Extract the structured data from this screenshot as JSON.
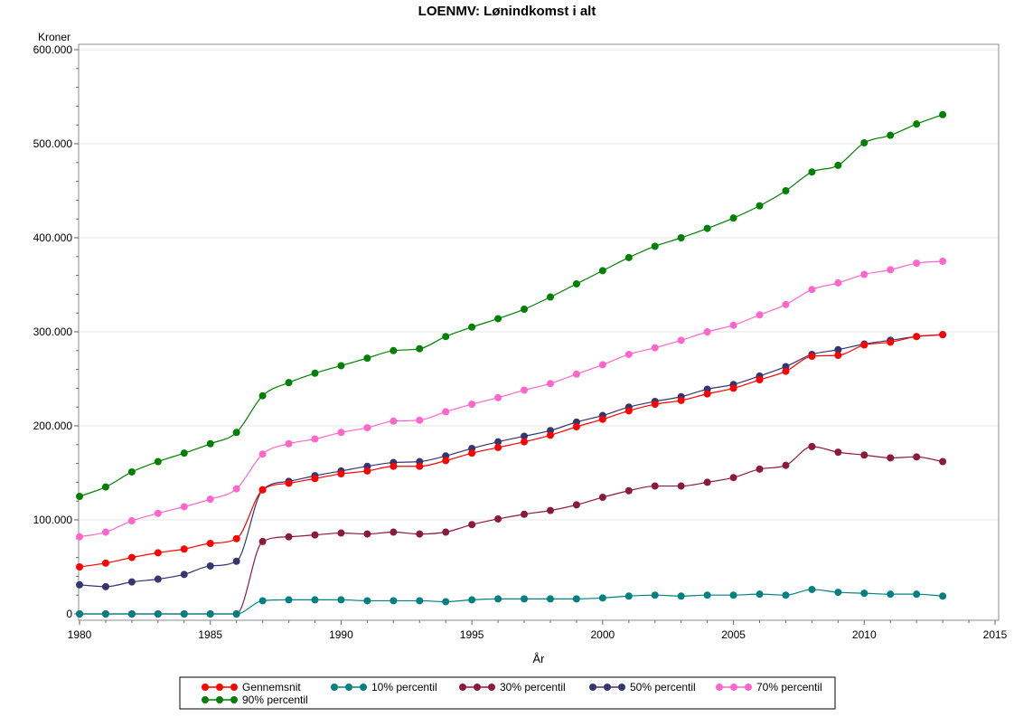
{
  "chart_data": {
    "type": "line",
    "title": "LOENMV: Lønindkomst i alt",
    "xlabel": "År",
    "ylabel": "Kroner",
    "xlim": [
      1980,
      2015
    ],
    "ylim": [
      0,
      600000
    ],
    "x_ticks": [
      1980,
      1985,
      1990,
      1995,
      2000,
      2005,
      2010,
      2015
    ],
    "x_tick_labels": [
      "1980",
      "1985",
      "1990",
      "1995",
      "2000",
      "2005",
      "2010",
      "2015"
    ],
    "y_ticks": [
      0,
      100000,
      200000,
      300000,
      400000,
      500000,
      600000
    ],
    "y_tick_labels": [
      "0",
      "100.000",
      "200.000",
      "300.000",
      "400.000",
      "500.000",
      "600.000"
    ],
    "grid": "horizontal",
    "legend_position": "bottom",
    "x": [
      1980,
      1981,
      1982,
      1983,
      1984,
      1985,
      1986,
      1987,
      1988,
      1989,
      1990,
      1991,
      1992,
      1993,
      1994,
      1995,
      1996,
      1997,
      1998,
      1999,
      2000,
      2001,
      2002,
      2003,
      2004,
      2005,
      2006,
      2007,
      2008,
      2009,
      2010,
      2011,
      2012,
      2013
    ],
    "series": [
      {
        "name": "Gennemsnit",
        "color": "#ff0000",
        "values": [
          50000,
          54000,
          60000,
          65000,
          69000,
          75000,
          80000,
          132000,
          139000,
          144000,
          149000,
          152000,
          157000,
          157000,
          163000,
          171000,
          177000,
          183000,
          190000,
          199000,
          207000,
          216000,
          223000,
          227000,
          234000,
          240000,
          249000,
          258000,
          274000,
          275000,
          286000,
          289000,
          295000,
          297000
        ]
      },
      {
        "name": "10% percentil",
        "color": "#008080",
        "values": [
          0,
          0,
          0,
          0,
          0,
          0,
          0,
          14000,
          15000,
          15000,
          15000,
          14000,
          14000,
          14000,
          13000,
          15000,
          16000,
          16000,
          16000,
          16000,
          17000,
          19000,
          20000,
          19000,
          20000,
          20000,
          21000,
          20000,
          26000,
          23000,
          22000,
          21000,
          21000,
          19000
        ]
      },
      {
        "name": "30% percentil",
        "color": "#8b1a3a",
        "values": [
          0,
          0,
          0,
          0,
          0,
          0,
          0,
          77000,
          82000,
          84000,
          86000,
          85000,
          87000,
          85000,
          87000,
          95000,
          101000,
          106000,
          110000,
          116000,
          124000,
          131000,
          136000,
          136000,
          140000,
          145000,
          154000,
          158000,
          178000,
          172000,
          169000,
          166000,
          167000,
          162000
        ]
      },
      {
        "name": "50% percentil",
        "color": "#353570",
        "values": [
          31000,
          29000,
          34000,
          37000,
          42000,
          51000,
          56000,
          132000,
          141000,
          147000,
          152000,
          157000,
          161000,
          162000,
          168000,
          176000,
          183000,
          189000,
          195000,
          204000,
          211000,
          220000,
          226000,
          231000,
          239000,
          244000,
          253000,
          263000,
          276000,
          281000,
          287000,
          291000,
          295000,
          297000
        ]
      },
      {
        "name": "70% percentil",
        "color": "#ff66cc",
        "values": [
          82000,
          87000,
          99000,
          107000,
          114000,
          122000,
          133000,
          170000,
          181000,
          186000,
          193000,
          198000,
          205000,
          206000,
          215000,
          223000,
          230000,
          238000,
          245000,
          255000,
          265000,
          276000,
          283000,
          291000,
          300000,
          307000,
          318000,
          329000,
          345000,
          352000,
          361000,
          366000,
          373000,
          375000
        ]
      },
      {
        "name": "90% percentil",
        "color": "#008000",
        "values": [
          125000,
          135000,
          151000,
          162000,
          171000,
          181000,
          193000,
          232000,
          246000,
          256000,
          264000,
          272000,
          280000,
          282000,
          295000,
          305000,
          314000,
          324000,
          337000,
          351000,
          365000,
          379000,
          391000,
          400000,
          410000,
          421000,
          434000,
          450000,
          470000,
          477000,
          501000,
          509000,
          521000,
          531000
        ]
      }
    ]
  }
}
